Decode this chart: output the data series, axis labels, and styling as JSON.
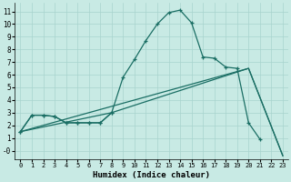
{
  "xlabel": "Humidex (Indice chaleur)",
  "bg_color": "#c8eae4",
  "grid_color": "#a8d4ce",
  "line_color": "#1a6e64",
  "xlim": [
    -0.5,
    23.5
  ],
  "ylim": [
    -0.7,
    11.7
  ],
  "xticks": [
    0,
    1,
    2,
    3,
    4,
    5,
    6,
    7,
    8,
    9,
    10,
    11,
    12,
    13,
    14,
    15,
    16,
    17,
    18,
    19,
    20,
    21,
    22,
    23
  ],
  "yticks": [
    0,
    1,
    2,
    3,
    4,
    5,
    6,
    7,
    8,
    9,
    10,
    11
  ],
  "ytick_labels": [
    "-0",
    "1",
    "2",
    "3",
    "4",
    "5",
    "6",
    "7",
    "8",
    "9",
    "10",
    "11"
  ],
  "curve1_x": [
    0,
    1,
    2,
    3,
    4,
    5,
    6,
    7,
    8,
    9,
    10,
    11,
    12,
    13,
    14,
    15,
    16,
    17,
    18,
    19,
    20,
    21
  ],
  "curve1_y": [
    1.5,
    2.8,
    2.8,
    2.7,
    2.2,
    2.2,
    2.2,
    2.2,
    3.0,
    5.8,
    7.2,
    8.7,
    10.0,
    10.9,
    11.1,
    10.1,
    7.4,
    7.3,
    6.6,
    6.5,
    2.2,
    0.9
  ],
  "curve2_x": [
    0,
    1,
    2,
    3,
    4,
    5,
    6,
    7,
    8
  ],
  "curve2_y": [
    1.5,
    2.8,
    2.8,
    2.7,
    2.2,
    2.2,
    2.2,
    2.2,
    3.0
  ],
  "line1_x": [
    0,
    20,
    23
  ],
  "line1_y": [
    1.5,
    6.5,
    -0.4
  ],
  "line2_x": [
    0,
    8,
    20,
    23
  ],
  "line2_y": [
    1.5,
    3.0,
    6.5,
    -0.4
  ],
  "xlabel_fontsize": 6.5,
  "tick_fontsize_x": 5.0,
  "tick_fontsize_y": 5.5
}
